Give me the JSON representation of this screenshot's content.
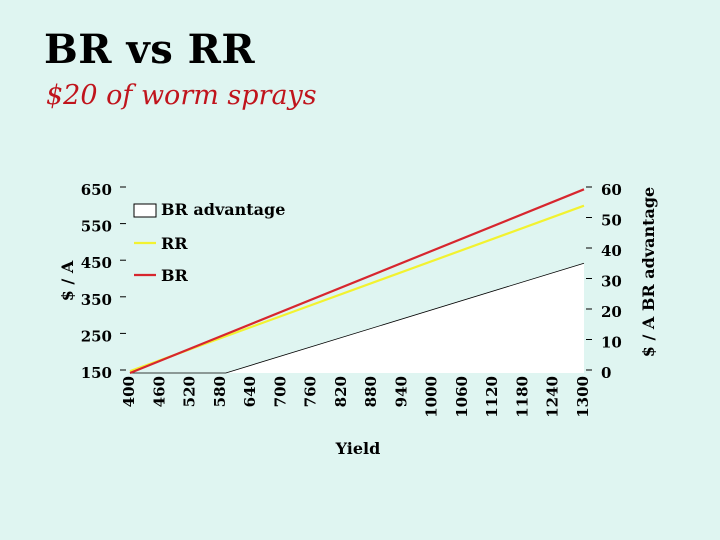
{
  "slide": {
    "title": "BR vs RR",
    "subtitle": "$20 of worm sprays"
  },
  "colors": {
    "background": "#dff5f1",
    "subtitle": "#c0141c",
    "br_line": "#d7262e",
    "rr_line": "#f2f230",
    "advantage_fill": "#ffffff"
  },
  "chart_data": {
    "type": "line",
    "title": "",
    "xlabel": "Yield",
    "ylabel_left": "$ / A",
    "ylabel_right": "$ / A BR advantage",
    "x_categories": [
      "400",
      "460",
      "520",
      "580",
      "640",
      "700",
      "760",
      "820",
      "880",
      "940",
      "1000",
      "1060",
      "1120",
      "1180",
      "1240",
      "1300"
    ],
    "x_range": [
      400,
      1300
    ],
    "y_left_ticks": [
      150,
      250,
      350,
      450,
      550,
      650
    ],
    "y_left_range": [
      150,
      650
    ],
    "y_right_ticks": [
      0,
      10,
      20,
      30,
      40,
      50,
      60
    ],
    "y_right_range": [
      0,
      60
    ],
    "series": [
      {
        "name": "BR advantage",
        "axis": "right",
        "kind": "area",
        "x": [
          400,
          590,
          1300
        ],
        "values": [
          0,
          0,
          36
        ]
      },
      {
        "name": "RR",
        "axis": "left",
        "kind": "line",
        "x": [
          400,
          1300
        ],
        "values": [
          155,
          607
        ]
      },
      {
        "name": "BR",
        "axis": "left",
        "kind": "line",
        "x": [
          400,
          1300
        ],
        "values": [
          150,
          652
        ]
      }
    ],
    "legend": {
      "position": "top-left",
      "entries": [
        "BR advantage",
        "RR",
        "BR"
      ]
    },
    "grid": false
  }
}
